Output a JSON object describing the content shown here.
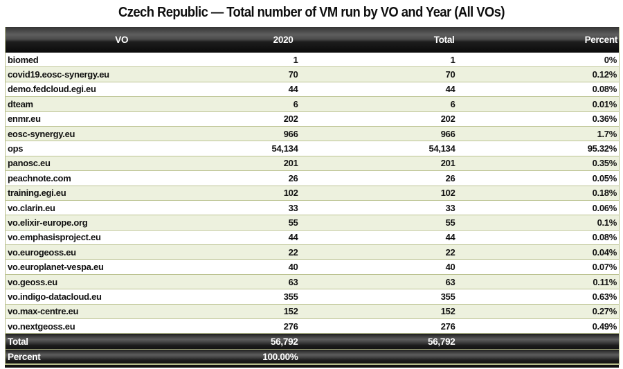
{
  "title": "Czech Republic — Total number of VM run by VO and Year (All VOs)",
  "table": {
    "columns": [
      "VO",
      "2020",
      "Total",
      "Percent"
    ],
    "rows": [
      {
        "vo": "biomed",
        "y2020": "1",
        "total": "1",
        "percent": "0%"
      },
      {
        "vo": "covid19.eosc-synergy.eu",
        "y2020": "70",
        "total": "70",
        "percent": "0.12%"
      },
      {
        "vo": "demo.fedcloud.egi.eu",
        "y2020": "44",
        "total": "44",
        "percent": "0.08%"
      },
      {
        "vo": "dteam",
        "y2020": "6",
        "total": "6",
        "percent": "0.01%"
      },
      {
        "vo": "enmr.eu",
        "y2020": "202",
        "total": "202",
        "percent": "0.36%"
      },
      {
        "vo": "eosc-synergy.eu",
        "y2020": "966",
        "total": "966",
        "percent": "1.7%"
      },
      {
        "vo": "ops",
        "y2020": "54,134",
        "total": "54,134",
        "percent": "95.32%"
      },
      {
        "vo": "panosc.eu",
        "y2020": "201",
        "total": "201",
        "percent": "0.35%"
      },
      {
        "vo": "peachnote.com",
        "y2020": "26",
        "total": "26",
        "percent": "0.05%"
      },
      {
        "vo": "training.egi.eu",
        "y2020": "102",
        "total": "102",
        "percent": "0.18%"
      },
      {
        "vo": "vo.clarin.eu",
        "y2020": "33",
        "total": "33",
        "percent": "0.06%"
      },
      {
        "vo": "vo.elixir-europe.org",
        "y2020": "55",
        "total": "55",
        "percent": "0.1%"
      },
      {
        "vo": "vo.emphasisproject.eu",
        "y2020": "44",
        "total": "44",
        "percent": "0.08%"
      },
      {
        "vo": "vo.eurogeoss.eu",
        "y2020": "22",
        "total": "22",
        "percent": "0.04%"
      },
      {
        "vo": "vo.europlanet-vespa.eu",
        "y2020": "40",
        "total": "40",
        "percent": "0.07%"
      },
      {
        "vo": "vo.geoss.eu",
        "y2020": "63",
        "total": "63",
        "percent": "0.11%"
      },
      {
        "vo": "vo.indigo-datacloud.eu",
        "y2020": "355",
        "total": "355",
        "percent": "0.63%"
      },
      {
        "vo": "vo.max-centre.eu",
        "y2020": "152",
        "total": "152",
        "percent": "0.27%"
      },
      {
        "vo": "vo.nextgeoss.eu",
        "y2020": "276",
        "total": "276",
        "percent": "0.49%"
      }
    ],
    "footer": {
      "total_label": "Total",
      "total_2020": "56,792",
      "total_total": "56,792",
      "total_percent": "",
      "percent_label": "Percent",
      "percent_2020": "100.00%",
      "percent_total": "",
      "percent_percent": ""
    }
  },
  "colors": {
    "row_alt": "#edf1de",
    "separator": "#bcc392",
    "header_text": "#ffffff",
    "header_bar_dark": "#0a0a0a",
    "header_bar_light": "#5e5e5e"
  }
}
